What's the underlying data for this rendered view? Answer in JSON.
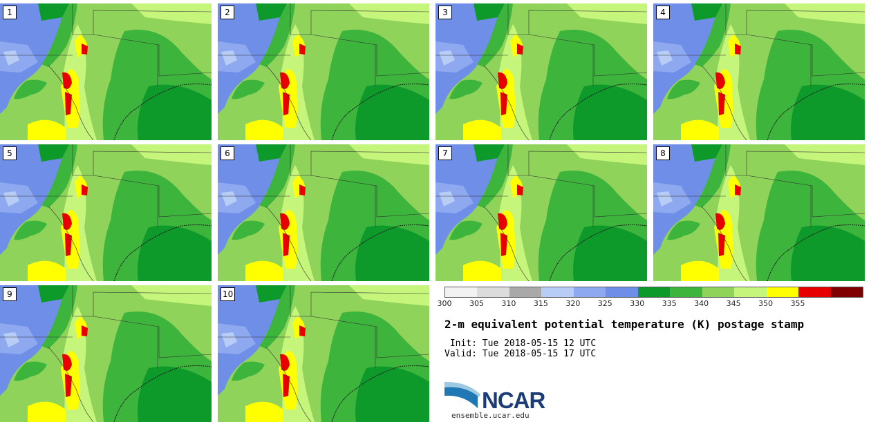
{
  "panels": [
    {
      "label": "1"
    },
    {
      "label": "2"
    },
    {
      "label": "3"
    },
    {
      "label": "4"
    },
    {
      "label": "5"
    },
    {
      "label": "6"
    },
    {
      "label": "7"
    },
    {
      "label": "8"
    },
    {
      "label": "9"
    },
    {
      "label": "10"
    }
  ],
  "colorbar": {
    "colors": [
      "#f2f2f2",
      "#dcdcdc",
      "#a9a9a9",
      "#b8cdf5",
      "#8ea9f0",
      "#6f8ee8",
      "#0d9a2a",
      "#3db53c",
      "#8fd35a",
      "#c6f57c",
      "#ffff00",
      "#e60000",
      "#800000"
    ],
    "ticks": [
      "300",
      "305",
      "310",
      "315",
      "320",
      "325",
      "330",
      "335",
      "340",
      "345",
      "350",
      "355"
    ]
  },
  "title": "2-m equivalent potential temperature (K) postage stamp",
  "init": " Init: Tue 2018-05-15 12 UTC",
  "valid": "Valid: Tue 2018-05-15 17 UTC",
  "logo": {
    "name": "NCAR",
    "url": "ensemble.ucar.edu"
  }
}
